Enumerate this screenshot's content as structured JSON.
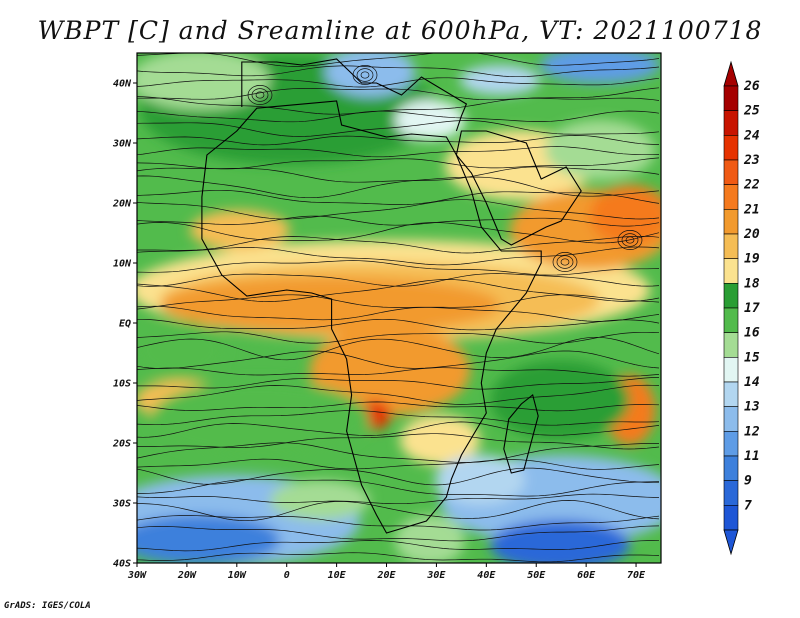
{
  "title": "WBPT [C] and Sreamline at 600hPa, VT: 2021100718",
  "credit": "GrADS: IGES/COLA",
  "map": {
    "lon_range": [
      -30,
      75
    ],
    "lat_range": [
      -40,
      45
    ],
    "lon_ticks": [
      {
        "value": -30,
        "label": "30W"
      },
      {
        "value": -20,
        "label": "20W"
      },
      {
        "value": -10,
        "label": "10W"
      },
      {
        "value": 0,
        "label": "0"
      },
      {
        "value": 10,
        "label": "10E"
      },
      {
        "value": 20,
        "label": "20E"
      },
      {
        "value": 30,
        "label": "30E"
      },
      {
        "value": 40,
        "label": "40E"
      },
      {
        "value": 50,
        "label": "50E"
      },
      {
        "value": 60,
        "label": "60E"
      },
      {
        "value": 70,
        "label": "70E"
      }
    ],
    "lat_ticks": [
      {
        "value": 40,
        "label": "40N"
      },
      {
        "value": 30,
        "label": "30N"
      },
      {
        "value": 20,
        "label": "20N"
      },
      {
        "value": 10,
        "label": "10N"
      },
      {
        "value": 0,
        "label": "EQ"
      },
      {
        "value": -10,
        "label": "10S"
      },
      {
        "value": -20,
        "label": "20S"
      },
      {
        "value": -30,
        "label": "30S"
      },
      {
        "value": -40,
        "label": "40S"
      }
    ]
  },
  "colorbar": {
    "levels": [
      {
        "label": "26",
        "color": "#a50000"
      },
      {
        "label": "25",
        "color": "#c81400"
      },
      {
        "label": "24",
        "color": "#e63200"
      },
      {
        "label": "23",
        "color": "#f05a14"
      },
      {
        "label": "22",
        "color": "#f57a1e"
      },
      {
        "label": "21",
        "color": "#f29a2e"
      },
      {
        "label": "20",
        "color": "#f5bd55"
      },
      {
        "label": "19",
        "color": "#fbe28f"
      },
      {
        "label": "18",
        "color": "#2a9e34"
      },
      {
        "label": "17",
        "color": "#52bb4c"
      },
      {
        "label": "16",
        "color": "#a4dc94"
      },
      {
        "label": "15",
        "color": "#e2f6f3"
      },
      {
        "label": "14",
        "color": "#b2d6f0"
      },
      {
        "label": "13",
        "color": "#8cbcec"
      },
      {
        "label": "12",
        "color": "#5e9ce6"
      },
      {
        "label": "11",
        "color": "#3d80dc"
      },
      {
        "label": "9",
        "color": "#2a68d8"
      },
      {
        "label": "7",
        "color": "#1e56d6"
      }
    ],
    "top_arrow_color": "#a50000",
    "bottom_arrow_color": "#1e56d6"
  },
  "field_colors": {
    "green_dark": "#2a9e34",
    "green": "#52bb4c",
    "green_light": "#a4dc94",
    "yellow": "#fbe28f",
    "orange_light": "#f5bd55",
    "orange": "#f29a2e",
    "orange_dark": "#f57a1e",
    "red": "#e63200",
    "blue_light": "#b2d6f0",
    "blue": "#8cbcec",
    "blue_mid": "#5e9ce6",
    "blue_dark": "#3d80dc",
    "blue_deep": "#2a68d8",
    "cyan_pale": "#e2f6f3"
  }
}
